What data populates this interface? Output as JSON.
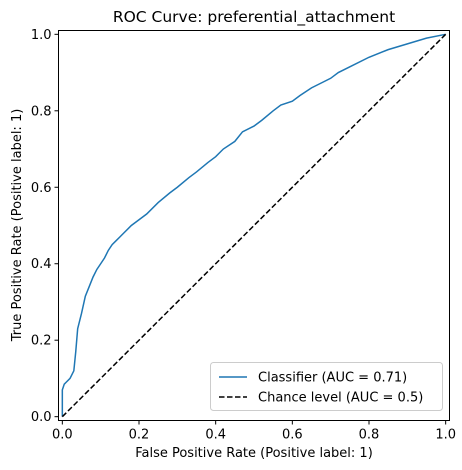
{
  "chart_data": {
    "type": "line",
    "title": "ROC Curve: preferential_attachment",
    "xlabel": "False Positive Rate (Positive label: 1)",
    "ylabel": "True Positive Rate (Positive label: 1)",
    "xlim": [
      -0.01,
      1.01
    ],
    "ylim": [
      -0.01,
      1.01
    ],
    "xticks": [
      0.0,
      0.2,
      0.4,
      0.6,
      0.8,
      1.0
    ],
    "xtick_labels": [
      "0.0",
      "0.2",
      "0.4",
      "0.6",
      "0.8",
      "1.0"
    ],
    "yticks": [
      0.0,
      0.2,
      0.4,
      0.6,
      0.8,
      1.0
    ],
    "ytick_labels": [
      "0.0",
      "0.2",
      "0.4",
      "0.6",
      "0.8",
      "1.0"
    ],
    "grid": false,
    "legend_position": "lower-right",
    "series": [
      {
        "name": "Classifier (AUC = 0.71)",
        "color": "#1f77b4",
        "style": "solid",
        "x": [
          0.0,
          0.0,
          0.005,
          0.01,
          0.02,
          0.03,
          0.035,
          0.04,
          0.05,
          0.06,
          0.07,
          0.08,
          0.09,
          0.1,
          0.11,
          0.12,
          0.13,
          0.14,
          0.15,
          0.16,
          0.18,
          0.2,
          0.22,
          0.25,
          0.28,
          0.3,
          0.33,
          0.35,
          0.38,
          0.4,
          0.42,
          0.45,
          0.47,
          0.5,
          0.52,
          0.55,
          0.57,
          0.6,
          0.62,
          0.65,
          0.68,
          0.7,
          0.72,
          0.75,
          0.8,
          0.85,
          0.9,
          0.95,
          1.0
        ],
        "y": [
          0.0,
          0.07,
          0.085,
          0.09,
          0.1,
          0.12,
          0.17,
          0.23,
          0.27,
          0.315,
          0.34,
          0.365,
          0.385,
          0.4,
          0.415,
          0.435,
          0.45,
          0.46,
          0.47,
          0.48,
          0.5,
          0.515,
          0.53,
          0.56,
          0.585,
          0.6,
          0.625,
          0.64,
          0.665,
          0.68,
          0.7,
          0.72,
          0.745,
          0.76,
          0.775,
          0.8,
          0.815,
          0.825,
          0.84,
          0.86,
          0.875,
          0.885,
          0.9,
          0.915,
          0.94,
          0.96,
          0.975,
          0.99,
          1.0
        ]
      },
      {
        "name": "Chance level (AUC = 0.5)",
        "color": "#000000",
        "style": "dashed",
        "x": [
          0.0,
          1.0
        ],
        "y": [
          0.0,
          1.0
        ]
      }
    ]
  }
}
